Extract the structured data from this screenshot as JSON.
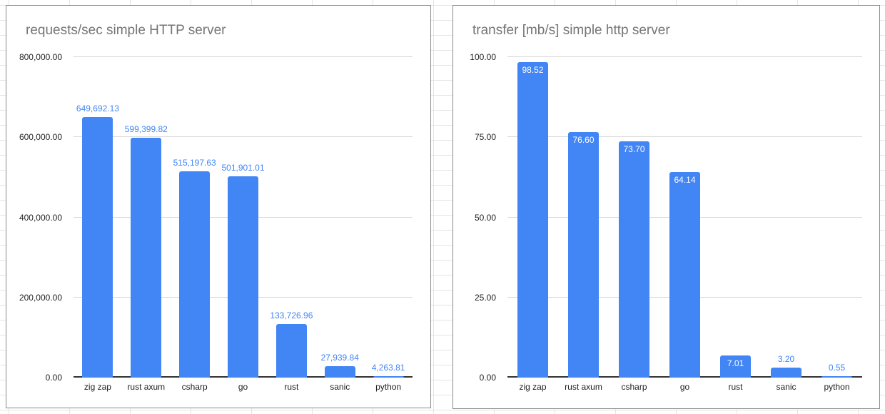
{
  "sheet": {
    "grid_color": "#e4e4e4",
    "background_color": "#ffffff"
  },
  "chart_data": [
    {
      "type": "bar",
      "title": "requests/sec simple HTTP server",
      "categories": [
        "zig zap",
        "rust axum",
        "csharp",
        "go",
        "rust",
        "sanic",
        "python"
      ],
      "values": [
        649692.13,
        599399.82,
        515197.63,
        501901.01,
        133726.96,
        27939.84,
        4263.81
      ],
      "value_labels": [
        "649,692.13",
        "599,399.82",
        "515,197.63",
        "501,901.01",
        "133,726.96",
        "27,939.84",
        "4,263.81"
      ],
      "label_placement": [
        "above",
        "above",
        "above",
        "above",
        "above",
        "above",
        "above"
      ],
      "xlabel": "",
      "ylabel": "",
      "ylim": [
        0,
        800000
      ],
      "ytick_values": [
        0,
        200000,
        400000,
        600000,
        800000
      ],
      "ytick_labels": [
        "0.00",
        "200,000.00",
        "400,000.00",
        "600,000.00",
        "800,000.00"
      ],
      "grid": true,
      "legend": "none",
      "bar_color": "#4285f4",
      "label_color_above": "#4285f4",
      "label_color_inside": "#ffffff",
      "title_color": "#757575",
      "axis_text_color": "#1f1f1f",
      "gridline_color": "#d9d9d9",
      "axis_line_color": "#333333"
    },
    {
      "type": "bar",
      "title": "transfer [mb/s] simple http server",
      "categories": [
        "zig zap",
        "rust axum",
        "csharp",
        "go",
        "rust",
        "sanic",
        "python"
      ],
      "values": [
        98.52,
        76.6,
        73.7,
        64.14,
        7.01,
        3.2,
        0.55
      ],
      "value_labels": [
        "98.52",
        "76.60",
        "73.70",
        "64.14",
        "7.01",
        "3.20",
        "0.55"
      ],
      "label_placement": [
        "inside",
        "inside",
        "inside",
        "inside",
        "inside",
        "above",
        "above"
      ],
      "xlabel": "",
      "ylabel": "",
      "ylim": [
        0,
        100
      ],
      "ytick_values": [
        0,
        25,
        50,
        75,
        100
      ],
      "ytick_labels": [
        "0.00",
        "25.00",
        "50.00",
        "75.00",
        "100.00"
      ],
      "grid": true,
      "legend": "none",
      "bar_color": "#4285f4",
      "label_color_above": "#4285f4",
      "label_color_inside": "#ffffff",
      "title_color": "#757575",
      "axis_text_color": "#1f1f1f",
      "gridline_color": "#d9d9d9",
      "axis_line_color": "#333333"
    }
  ]
}
